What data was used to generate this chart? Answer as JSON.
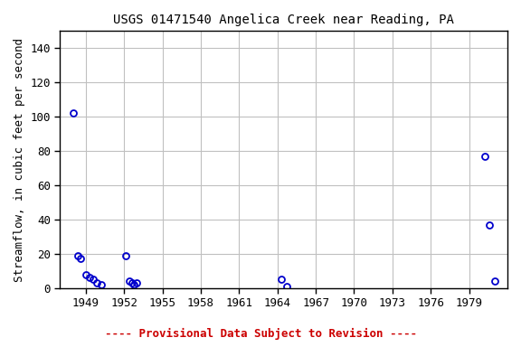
{
  "title": "USGS 01471540 Angelica Creek near Reading, PA",
  "ylabel": "Streamflow, in cubic feet per second",
  "xlabel": "",
  "footer": "---- Provisional Data Subject to Revision ----",
  "xlim": [
    1947,
    1982
  ],
  "ylim": [
    0,
    150
  ],
  "xticks": [
    1949,
    1952,
    1955,
    1958,
    1961,
    1964,
    1967,
    1970,
    1973,
    1976,
    1979
  ],
  "yticks": [
    0,
    20,
    40,
    60,
    80,
    100,
    120,
    140
  ],
  "data_x": [
    1948.0,
    1948.4,
    1948.6,
    1949.0,
    1949.3,
    1949.6,
    1949.9,
    1950.2,
    1952.1,
    1952.4,
    1952.6,
    1952.8,
    1953.0,
    1964.3,
    1964.7,
    1980.2,
    1980.6,
    1981.0
  ],
  "data_y": [
    102,
    19,
    17,
    8,
    6,
    5,
    3,
    2,
    19,
    4,
    3,
    2,
    3,
    5,
    1,
    77,
    37,
    4
  ],
  "marker_color": "#0000cc",
  "marker_size": 5,
  "marker_lw": 1.3,
  "grid_color": "#c0c0c0",
  "bg_color": "#ffffff",
  "title_fontsize": 10,
  "axis_fontsize": 9,
  "tick_fontsize": 9,
  "footer_color": "#cc0000",
  "footer_fontsize": 9
}
